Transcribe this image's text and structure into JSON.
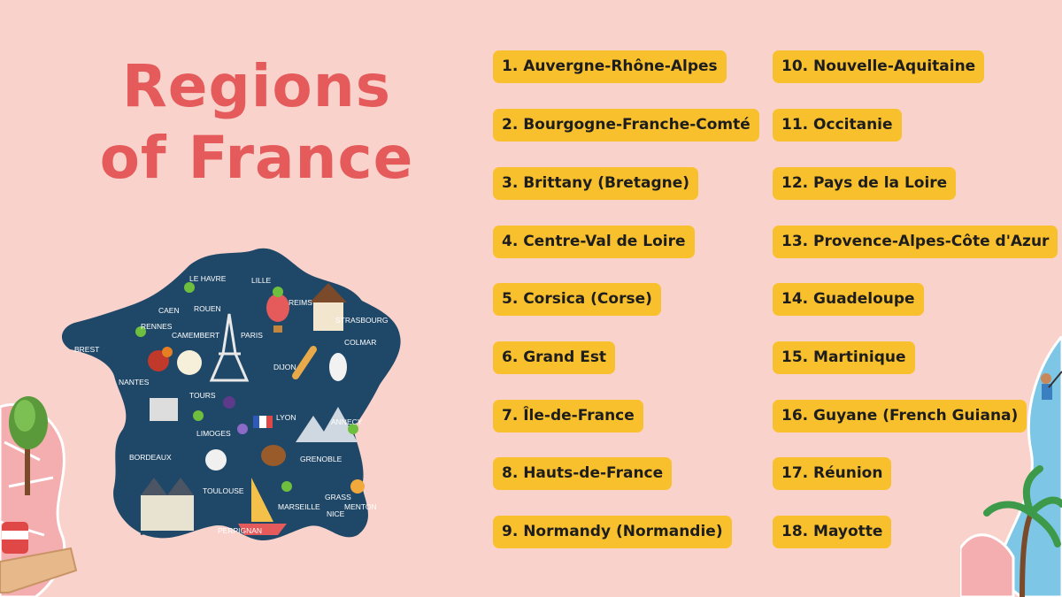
{
  "title": {
    "line1": "Regions",
    "line2": "of France"
  },
  "map_labels": [
    "LE HAVRE",
    "LILLE",
    "CAEN",
    "ROUEN",
    "REIMS",
    "STRASBOURG",
    "RENNES",
    "CAMEMBERT",
    "PARIS",
    "COLMAR",
    "BREST",
    "DIJON",
    "NANTES",
    "TOURS",
    "LYON",
    "ANNECY",
    "LIMOGES",
    "BORDEAUX",
    "GRENOBLE",
    "TOULOUSE",
    "MARSEILLE",
    "GRASS",
    "MENTON",
    "NICE",
    "PERPIGNAN"
  ],
  "regions": [
    "1. Auvergne-Rhône-Alpes",
    "2. Bourgogne-Franche-Comté",
    "3. Brittany (Bretagne)",
    "4. Centre-Val de Loire",
    "5. Corsica (Corse)",
    "6. Grand Est",
    "7. Île-de-France",
    "8. Hauts-de-France",
    "9. Normandy (Normandie)",
    "10. Nouvelle-Aquitaine",
    "11. Occitanie",
    "12. Pays de la Loire",
    "13. Provence-Alpes-Côte d'Azur",
    "14. Guadeloupe",
    "15. Martinique",
    "16. Guyane (French Guiana)",
    "17. Réunion",
    "18. Mayotte"
  ],
  "colors": {
    "background": "#f9d3cb",
    "title": "#e55b5b",
    "pill": "#f9c02d",
    "map": "#1f4868"
  }
}
